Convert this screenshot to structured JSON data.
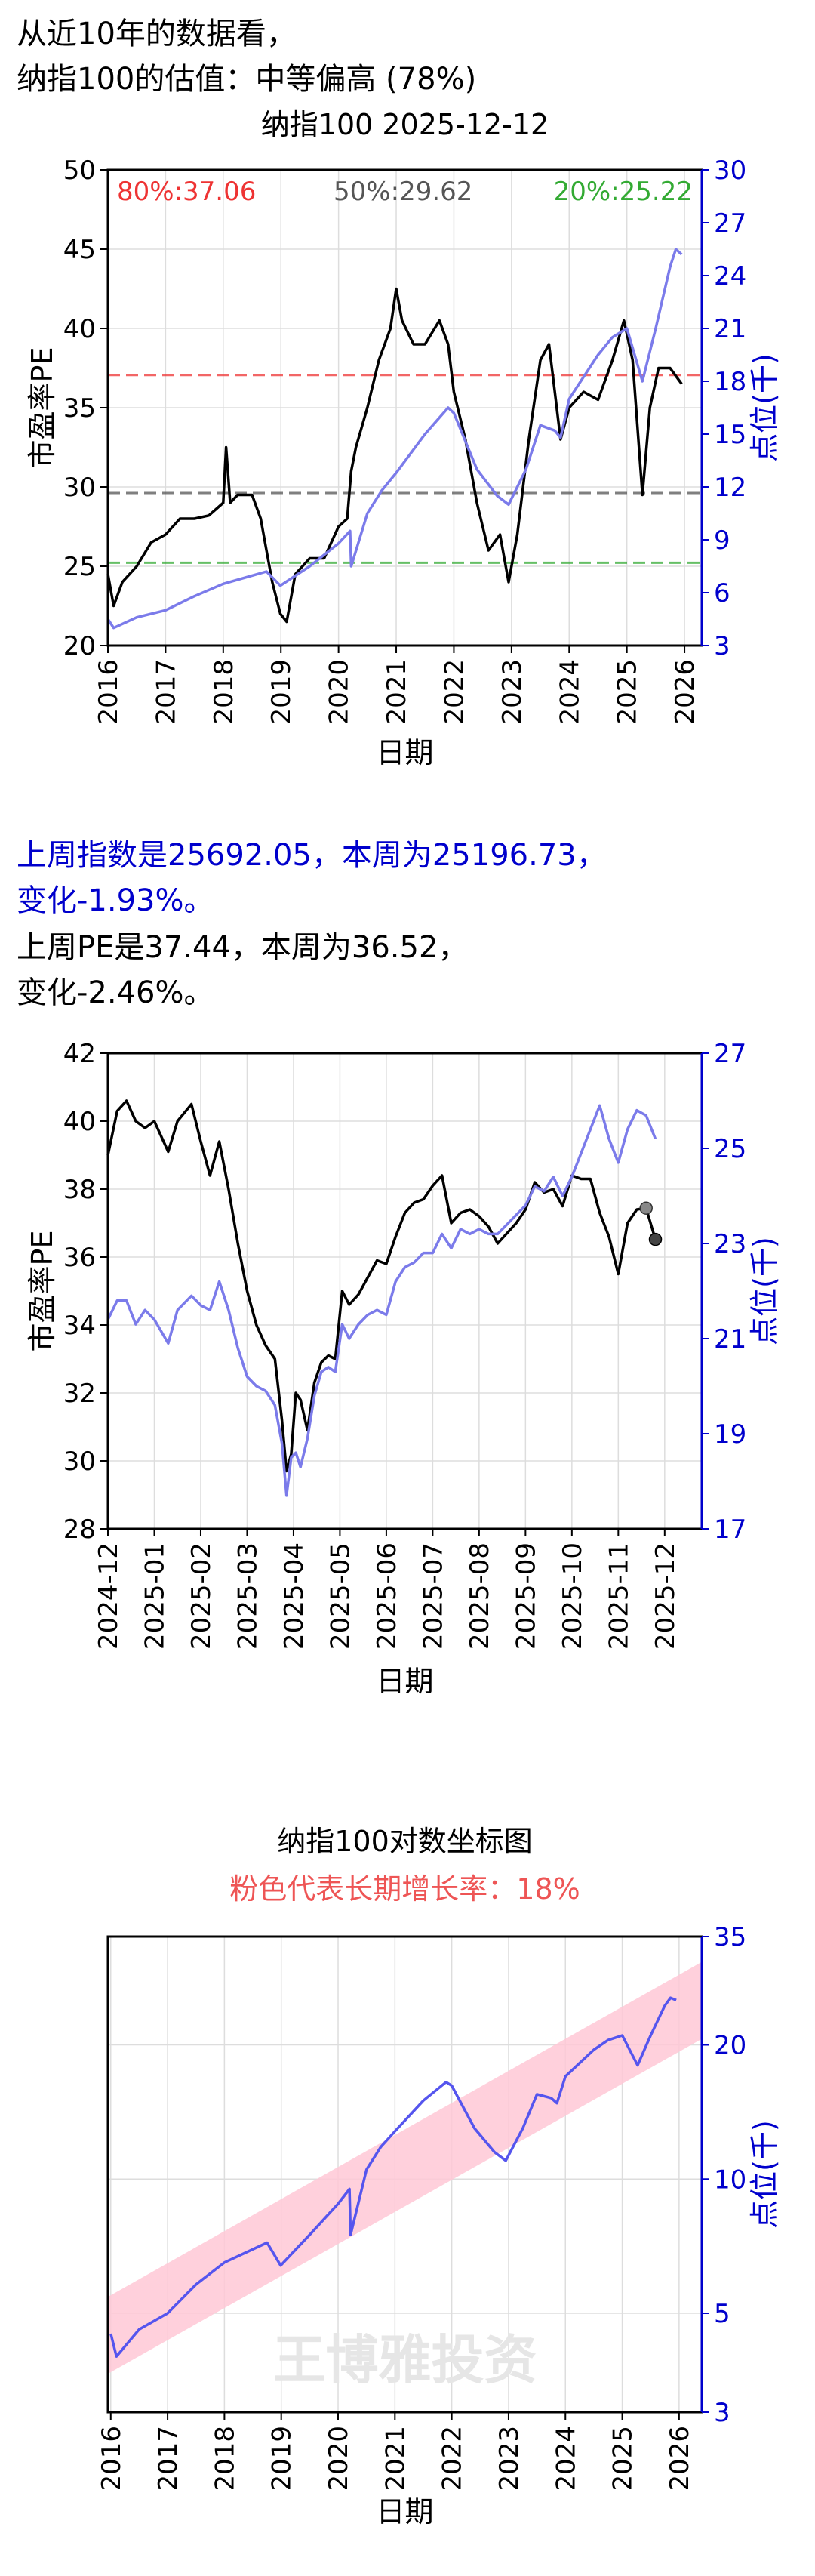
{
  "header": {
    "line1": "从近10年的数据看，",
    "line2": "纳指100的估值：中等偏高 (78%)"
  },
  "weekly": {
    "index_line1": "上周指数是25692.05，本周为25196.73，",
    "index_line2": "变化-1.93%。",
    "pe_line1": "上周PE是37.44，本周为36.52，",
    "pe_line2": "变化-2.46%。"
  },
  "colors": {
    "pe": "#000000",
    "index": "#7b7bea",
    "right_axis": "#0000cc",
    "pct80": "#ee3333",
    "pct50": "#555555",
    "pct20": "#33aa33",
    "trend_band": "#ffc8d6",
    "watermark": "#e6e6e6"
  },
  "chart_data": [
    {
      "type": "line",
      "title": "纳指100 2025-12-12",
      "xlabel": "日期",
      "ylabel": "市盈率PE",
      "ylabel_right": "点位(千)",
      "xlim": [
        2016,
        2026.3
      ],
      "ylim": [
        20,
        50
      ],
      "ylim_right": [
        3,
        30
      ],
      "x_ticks": [
        2016,
        2017,
        2018,
        2019,
        2020,
        2021,
        2022,
        2023,
        2024,
        2025,
        2026
      ],
      "y_ticks": [
        20,
        25,
        30,
        35,
        40,
        45,
        50
      ],
      "y_ticks_right": [
        3,
        6,
        9,
        12,
        15,
        18,
        21,
        24,
        27,
        30
      ],
      "grid": true,
      "percentile_lines": [
        {
          "label": "80%:37.06",
          "value": 37.06,
          "color": "#ee3333"
        },
        {
          "label": "50%:29.62",
          "value": 29.62,
          "color": "#555555"
        },
        {
          "label": "20%:25.22",
          "value": 25.22,
          "color": "#33aa33"
        }
      ],
      "series": [
        {
          "axis": "left",
          "color": "#000000",
          "x": [
            2016.0,
            2016.1,
            2016.25,
            2016.5,
            2016.75,
            2017.0,
            2017.25,
            2017.5,
            2017.75,
            2018.0,
            2018.05,
            2018.12,
            2018.25,
            2018.5,
            2018.65,
            2018.75,
            2018.85,
            2018.99,
            2019.1,
            2019.25,
            2019.5,
            2019.75,
            2020.0,
            2020.15,
            2020.22,
            2020.3,
            2020.5,
            2020.7,
            2020.9,
            2021.0,
            2021.1,
            2021.3,
            2021.5,
            2021.75,
            2021.9,
            2022.0,
            2022.2,
            2022.4,
            2022.6,
            2022.8,
            2022.95,
            2023.1,
            2023.3,
            2023.5,
            2023.65,
            2023.75,
            2023.85,
            2024.0,
            2024.25,
            2024.5,
            2024.75,
            2024.95,
            2025.1,
            2025.27,
            2025.4,
            2025.55,
            2025.75,
            2025.95
          ],
          "y": [
            24.5,
            22.5,
            24.0,
            25.0,
            26.5,
            27.0,
            28.0,
            28.0,
            28.2,
            29.0,
            32.5,
            29.0,
            29.5,
            29.5,
            28.0,
            26.0,
            24.0,
            22.0,
            21.5,
            24.5,
            25.5,
            25.5,
            27.5,
            28.0,
            31.0,
            32.5,
            35.0,
            38.0,
            40.0,
            42.5,
            40.5,
            39.0,
            39.0,
            40.5,
            39.0,
            36.0,
            33.0,
            29.0,
            26.0,
            27.0,
            24.0,
            27.0,
            33.0,
            38.0,
            39.0,
            36.0,
            33.0,
            35.0,
            36.0,
            35.5,
            38.0,
            40.5,
            38.0,
            29.5,
            35.0,
            37.5,
            37.5,
            36.5
          ]
        },
        {
          "axis": "right",
          "color": "#7b7bea",
          "x": [
            2016.0,
            2016.1,
            2016.5,
            2017.0,
            2017.5,
            2018.0,
            2018.75,
            2018.99,
            2019.5,
            2020.0,
            2020.2,
            2020.22,
            2020.5,
            2020.75,
            2021.0,
            2021.5,
            2021.9,
            2022.0,
            2022.4,
            2022.75,
            2022.95,
            2023.25,
            2023.5,
            2023.75,
            2023.85,
            2024.0,
            2024.5,
            2024.75,
            2025.0,
            2025.27,
            2025.5,
            2025.75,
            2025.85,
            2025.95
          ],
          "y": [
            4.5,
            4.0,
            4.6,
            5.0,
            5.8,
            6.5,
            7.2,
            6.4,
            7.5,
            8.8,
            9.5,
            7.5,
            10.5,
            11.8,
            12.8,
            15.0,
            16.5,
            16.2,
            13.0,
            11.5,
            11.0,
            13.0,
            15.5,
            15.2,
            14.8,
            17.0,
            19.5,
            20.5,
            21.0,
            18.0,
            21.0,
            24.5,
            25.5,
            25.2
          ]
        }
      ]
    },
    {
      "type": "line",
      "xlabel": "日期",
      "ylabel": "市盈率PE",
      "ylabel_right": "点位(千)",
      "x_ticks": [
        "2024-12",
        "2025-01",
        "2025-02",
        "2025-03",
        "2025-04",
        "2025-05",
        "2025-06",
        "2025-07",
        "2025-08",
        "2025-09",
        "2025-10",
        "2025-11",
        "2025-12"
      ],
      "y_ticks": [
        28,
        30,
        32,
        34,
        36,
        38,
        40,
        42
      ],
      "y_ticks_right": [
        17,
        19,
        21,
        23,
        25,
        27
      ],
      "ylim": [
        28,
        42
      ],
      "ylim_right": [
        17,
        27
      ],
      "grid": true,
      "last_points": {
        "pe_prev": 37.44,
        "pe_now": 36.52,
        "index_prev": 25.69,
        "index_now": 25.2
      },
      "series": [
        {
          "axis": "left",
          "color": "#000000",
          "x": [
            0,
            0.2,
            0.4,
            0.6,
            0.8,
            1.0,
            1.3,
            1.5,
            1.8,
            2.0,
            2.2,
            2.4,
            2.6,
            2.8,
            3.0,
            3.2,
            3.4,
            3.6,
            3.75,
            3.85,
            3.95,
            4.05,
            4.15,
            4.3,
            4.45,
            4.6,
            4.75,
            4.9,
            5.05,
            5.2,
            5.4,
            5.6,
            5.8,
            6.0,
            6.2,
            6.4,
            6.6,
            6.8,
            7.0,
            7.2,
            7.4,
            7.6,
            7.8,
            8.0,
            8.2,
            8.4,
            8.6,
            8.8,
            9.0,
            9.2,
            9.4,
            9.6,
            9.8,
            10.0,
            10.2,
            10.4,
            10.6,
            10.8,
            11.0,
            11.2,
            11.4,
            11.6,
            11.8,
            12.0,
            12.15,
            12.3
          ],
          "y": [
            39.0,
            40.3,
            40.6,
            40.0,
            39.8,
            40.0,
            39.1,
            40.0,
            40.5,
            39.4,
            38.4,
            39.4,
            38.0,
            36.4,
            35.0,
            34.0,
            33.4,
            33.0,
            31.2,
            29.7,
            30.2,
            32.0,
            31.8,
            30.9,
            32.3,
            32.9,
            33.1,
            33.0,
            35.0,
            34.6,
            34.9,
            35.4,
            35.9,
            35.8,
            36.6,
            37.3,
            37.6,
            37.7,
            38.1,
            38.4,
            37.0,
            37.3,
            37.4,
            37.2,
            36.9,
            36.4,
            36.7,
            37.0,
            37.4,
            38.2,
            37.9,
            38.0,
            37.5,
            38.4,
            38.3,
            38.3,
            37.3,
            36.6,
            35.5,
            37.0,
            37.4,
            37.44,
            36.52,
            null,
            null,
            null
          ]
        },
        {
          "axis": "right",
          "color": "#7b7bea",
          "x": [
            0,
            0.2,
            0.4,
            0.6,
            0.8,
            1.0,
            1.3,
            1.5,
            1.8,
            2.0,
            2.2,
            2.4,
            2.6,
            2.8,
            3.0,
            3.2,
            3.4,
            3.6,
            3.75,
            3.85,
            3.95,
            4.05,
            4.15,
            4.3,
            4.45,
            4.6,
            4.75,
            4.9,
            5.05,
            5.2,
            5.4,
            5.6,
            5.8,
            6.0,
            6.2,
            6.4,
            6.6,
            6.8,
            7.0,
            7.2,
            7.4,
            7.6,
            7.8,
            8.0,
            8.2,
            8.4,
            8.6,
            8.8,
            9.0,
            9.2,
            9.4,
            9.6,
            9.8,
            10.0,
            10.2,
            10.4,
            10.6,
            10.8,
            11.0,
            11.2,
            11.4,
            11.6,
            11.8
          ],
          "y": [
            21.4,
            21.8,
            21.8,
            21.3,
            21.6,
            21.4,
            20.9,
            21.6,
            21.9,
            21.7,
            21.6,
            22.2,
            21.6,
            20.8,
            20.2,
            20.0,
            19.9,
            19.6,
            18.8,
            17.7,
            18.5,
            18.6,
            18.3,
            18.9,
            19.8,
            20.3,
            20.4,
            20.3,
            21.3,
            21.0,
            21.3,
            21.5,
            21.6,
            21.5,
            22.2,
            22.5,
            22.6,
            22.8,
            22.8,
            23.2,
            22.9,
            23.3,
            23.2,
            23.3,
            23.2,
            23.2,
            23.4,
            23.6,
            23.8,
            24.2,
            24.1,
            24.4,
            24.0,
            24.4,
            24.9,
            25.4,
            25.9,
            25.2,
            24.7,
            25.4,
            25.8,
            25.69,
            25.2
          ]
        }
      ]
    },
    {
      "type": "line",
      "title": "纳指100对数坐标图",
      "subtitle": "粉色代表长期增长率：18%",
      "xlabel": "日期",
      "ylabel_right": "点位(千)",
      "scale_right": "log",
      "ylim_right": [
        3,
        35
      ],
      "y_ticks_right": [
        3,
        5,
        10,
        20,
        35
      ],
      "x_ticks": [
        2016,
        2017,
        2018,
        2019,
        2020,
        2021,
        2022,
        2023,
        2024,
        2025,
        2026
      ],
      "watermark": "王博雅投资",
      "grid": true,
      "trend_band": {
        "growth_rate": 0.18,
        "start_year": 2016,
        "start_center": 4.5,
        "end_year": 2026.3,
        "end_center": 24.0
      },
      "series": [
        {
          "axis": "right",
          "color": "#5555ee",
          "x": [
            2016.0,
            2016.1,
            2016.5,
            2017.0,
            2017.5,
            2018.0,
            2018.75,
            2018.99,
            2019.5,
            2020.0,
            2020.2,
            2020.22,
            2020.5,
            2020.75,
            2021.0,
            2021.5,
            2021.9,
            2022.0,
            2022.4,
            2022.75,
            2022.95,
            2023.25,
            2023.5,
            2023.75,
            2023.85,
            2024.0,
            2024.5,
            2024.75,
            2025.0,
            2025.27,
            2025.5,
            2025.75,
            2025.85,
            2025.95
          ],
          "y": [
            4.5,
            4.0,
            4.6,
            5.0,
            5.8,
            6.5,
            7.2,
            6.4,
            7.5,
            8.8,
            9.5,
            7.5,
            10.5,
            11.8,
            12.8,
            15.0,
            16.5,
            16.2,
            13.0,
            11.5,
            11.0,
            13.0,
            15.5,
            15.2,
            14.8,
            17.0,
            19.5,
            20.5,
            21.0,
            18.0,
            21.0,
            24.5,
            25.5,
            25.2
          ]
        }
      ]
    }
  ]
}
